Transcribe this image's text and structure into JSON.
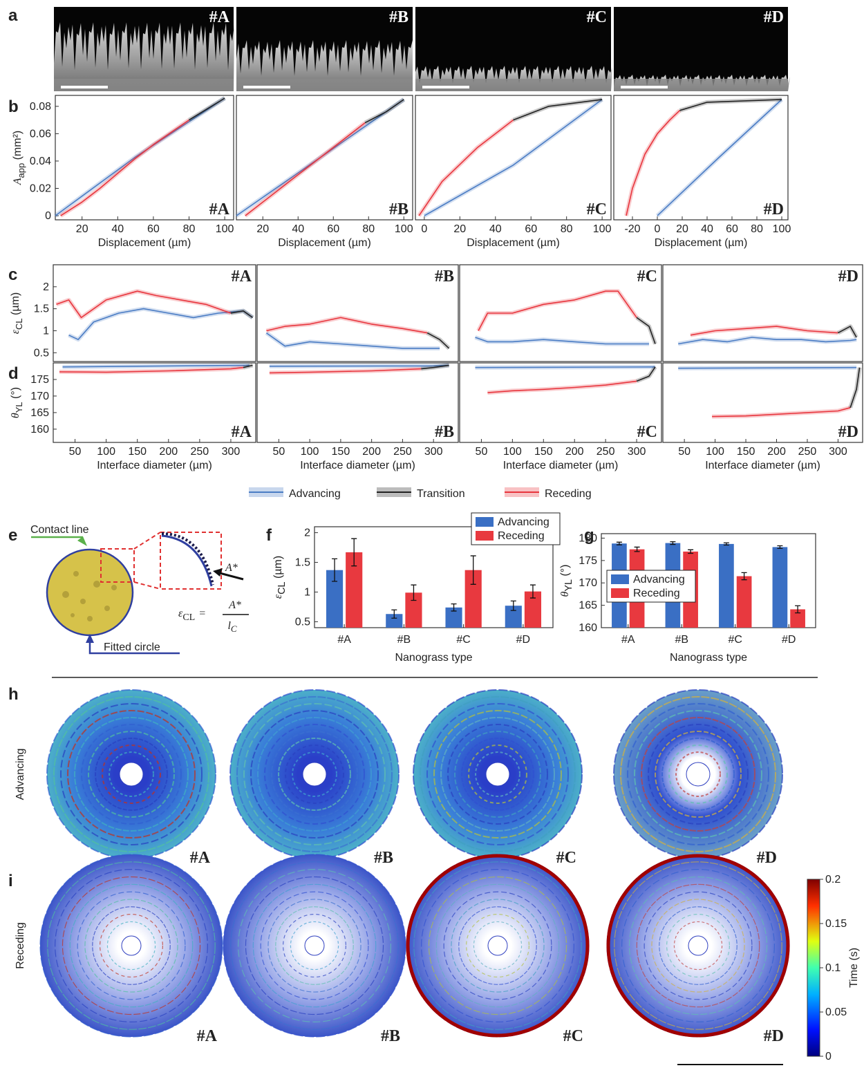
{
  "panel_labels": [
    "a",
    "b",
    "c",
    "d",
    "e",
    "f",
    "g",
    "h",
    "i"
  ],
  "sem_images": [
    {
      "tag": "#A"
    },
    {
      "tag": "#B"
    },
    {
      "tag": "#C"
    },
    {
      "tag": "#D"
    }
  ],
  "line_legend": [
    {
      "name": "Advancing",
      "color": "#4a7cc4"
    },
    {
      "name": "Transition",
      "color": "#222222"
    },
    {
      "name": "Receding",
      "color": "#e8353d"
    }
  ],
  "chart_data": [
    {
      "type": "line",
      "tag": "#A",
      "xlabel": "Displacement (µm)",
      "ylabel": {
        "symbol": "A",
        "subscript": "app",
        "unit": " (mm²)"
      },
      "xlim": [
        5,
        105
      ],
      "xticks": [
        20,
        40,
        60,
        80,
        100
      ],
      "ylim": [
        -0.003,
        0.088
      ],
      "yticks": [
        0,
        0.02,
        0.04,
        0.06,
        0.08
      ],
      "series": [
        {
          "color": "#4a7cc4",
          "x": [
            5,
            50,
            100
          ],
          "values": [
            0,
            0.043,
            0.086
          ]
        },
        {
          "color": "#e8353d",
          "x": [
            8,
            20,
            30,
            50,
            60,
            80
          ],
          "values": [
            0,
            0.01,
            0.02,
            0.042,
            0.052,
            0.07
          ]
        },
        {
          "color": "#222222",
          "x": [
            80,
            100
          ],
          "values": [
            0.07,
            0.086
          ]
        }
      ]
    },
    {
      "type": "line",
      "tag": "#B",
      "xlabel": "Displacement (µm)",
      "xlim": [
        5,
        105
      ],
      "xticks": [
        20,
        40,
        60,
        80,
        100
      ],
      "ylim": [
        -0.003,
        0.088
      ],
      "series": [
        {
          "color": "#4a7cc4",
          "x": [
            5,
            100
          ],
          "values": [
            0,
            0.085
          ]
        },
        {
          "color": "#e8353d",
          "x": [
            10,
            20,
            40,
            60,
            78
          ],
          "values": [
            0,
            0.01,
            0.03,
            0.05,
            0.068
          ]
        },
        {
          "color": "#222222",
          "x": [
            78,
            90,
            100
          ],
          "values": [
            0.068,
            0.076,
            0.085
          ]
        }
      ]
    },
    {
      "type": "line",
      "tag": "#C",
      "xlabel": "Displacement (µm)",
      "xlim": [
        -5,
        105
      ],
      "xticks": [
        0,
        20,
        40,
        60,
        80,
        100
      ],
      "ylim": [
        -0.003,
        0.088
      ],
      "series": [
        {
          "color": "#4a7cc4",
          "x": [
            0,
            50,
            100
          ],
          "values": [
            0,
            0.037,
            0.085
          ]
        },
        {
          "color": "#e8353d",
          "x": [
            -3,
            10,
            30,
            50
          ],
          "values": [
            0,
            0.025,
            0.05,
            0.07
          ]
        },
        {
          "color": "#222222",
          "x": [
            50,
            70,
            100
          ],
          "values": [
            0.07,
            0.08,
            0.085
          ]
        }
      ]
    },
    {
      "type": "line",
      "tag": "#D",
      "xlabel": "Displacement (µm)",
      "xlim": [
        -35,
        105
      ],
      "xticks": [
        -20,
        0,
        20,
        40,
        60,
        80,
        100
      ],
      "ylim": [
        -0.003,
        0.088
      ],
      "series": [
        {
          "color": "#4a7cc4",
          "x": [
            0,
            50,
            100
          ],
          "values": [
            0,
            0.043,
            0.085
          ]
        },
        {
          "color": "#e8353d",
          "x": [
            -25,
            -20,
            -10,
            0,
            10,
            18
          ],
          "values": [
            0,
            0.02,
            0.045,
            0.06,
            0.07,
            0.077
          ]
        },
        {
          "color": "#222222",
          "x": [
            18,
            40,
            100
          ],
          "values": [
            0.077,
            0.083,
            0.085
          ]
        }
      ]
    },
    {
      "type": "line",
      "tag": "#A",
      "ylabel": {
        "symbol": "ε",
        "subscript": "CL",
        "unit": " (µm)"
      },
      "xlim": [
        15,
        340
      ],
      "ylim": [
        0.3,
        2.5
      ],
      "yticks": [
        0.5,
        1,
        1.5,
        2
      ],
      "series": [
        {
          "color": "#4a7cc4",
          "x": [
            40,
            55,
            80,
            120,
            160,
            200,
            240,
            280,
            320,
            335
          ],
          "values": [
            0.9,
            0.8,
            1.2,
            1.4,
            1.5,
            1.4,
            1.3,
            1.4,
            1.45,
            1.3
          ]
        },
        {
          "color": "#e8353d",
          "x": [
            20,
            40,
            60,
            100,
            150,
            180,
            220,
            260,
            300
          ],
          "values": [
            1.6,
            1.7,
            1.3,
            1.7,
            1.9,
            1.8,
            1.7,
            1.6,
            1.4
          ]
        },
        {
          "color": "#222222",
          "x": [
            300,
            320,
            335
          ],
          "values": [
            1.4,
            1.45,
            1.3
          ]
        }
      ]
    },
    {
      "type": "line",
      "tag": "#B",
      "xlim": [
        15,
        340
      ],
      "ylim": [
        0.3,
        2.5
      ],
      "series": [
        {
          "color": "#4a7cc4",
          "x": [
            30,
            60,
            100,
            150,
            200,
            250,
            290,
            310
          ],
          "values": [
            0.95,
            0.65,
            0.75,
            0.7,
            0.65,
            0.6,
            0.6,
            0.6
          ]
        },
        {
          "color": "#e8353d",
          "x": [
            30,
            60,
            100,
            150,
            200,
            250,
            290
          ],
          "values": [
            1,
            1.1,
            1.15,
            1.3,
            1.15,
            1.05,
            0.95
          ]
        },
        {
          "color": "#222222",
          "x": [
            290,
            310,
            325
          ],
          "values": [
            0.95,
            0.8,
            0.6
          ]
        }
      ]
    },
    {
      "type": "line",
      "tag": "#C",
      "xlim": [
        15,
        340
      ],
      "ylim": [
        0.3,
        2.5
      ],
      "series": [
        {
          "color": "#4a7cc4",
          "x": [
            40,
            60,
            100,
            150,
            200,
            250,
            300,
            320
          ],
          "values": [
            0.85,
            0.75,
            0.75,
            0.8,
            0.75,
            0.7,
            0.7,
            0.7
          ]
        },
        {
          "color": "#e8353d",
          "x": [
            45,
            60,
            100,
            150,
            200,
            250,
            270,
            300
          ],
          "values": [
            1,
            1.4,
            1.4,
            1.6,
            1.7,
            1.9,
            1.9,
            1.3
          ]
        },
        {
          "color": "#222222",
          "x": [
            300,
            320,
            330
          ],
          "values": [
            1.3,
            1.1,
            0.7
          ]
        }
      ]
    },
    {
      "type": "line",
      "tag": "#D",
      "xlim": [
        15,
        340
      ],
      "ylim": [
        0.3,
        2.5
      ],
      "series": [
        {
          "color": "#4a7cc4",
          "x": [
            40,
            80,
            120,
            160,
            200,
            240,
            280,
            320,
            330
          ],
          "values": [
            0.7,
            0.8,
            0.75,
            0.85,
            0.8,
            0.8,
            0.75,
            0.78,
            0.8
          ]
        },
        {
          "color": "#e8353d",
          "x": [
            60,
            100,
            150,
            200,
            250,
            300
          ],
          "values": [
            0.9,
            1,
            1.05,
            1.1,
            1,
            0.95
          ]
        },
        {
          "color": "#222222",
          "x": [
            300,
            320,
            330
          ],
          "values": [
            0.95,
            1.1,
            0.85
          ]
        }
      ]
    },
    {
      "type": "line",
      "tag": "#A",
      "xlabel": "Interface diameter (µm)",
      "ylabel": {
        "symbol": "θ",
        "subscript": "YL",
        "unit": " (°)"
      },
      "xlim": [
        15,
        340
      ],
      "xticks": [
        50,
        100,
        150,
        200,
        250,
        300
      ],
      "ylim": [
        156,
        180
      ],
      "yticks": [
        160,
        165,
        170,
        175
      ],
      "series": [
        {
          "color": "#4a7cc4",
          "x": [
            30,
            330
          ],
          "values": [
            178.8,
            179.3
          ]
        },
        {
          "color": "#e8353d",
          "x": [
            25,
            100,
            200,
            300,
            320
          ],
          "values": [
            177.3,
            177.2,
            177.6,
            178.2,
            178.6
          ]
        },
        {
          "color": "#222222",
          "x": [
            320,
            335
          ],
          "values": [
            178.6,
            179.3
          ]
        }
      ]
    },
    {
      "type": "line",
      "tag": "#B",
      "xlabel": "Interface diameter (µm)",
      "xlim": [
        15,
        340
      ],
      "xticks": [
        50,
        100,
        150,
        200,
        250,
        300
      ],
      "ylim": [
        156,
        180
      ],
      "series": [
        {
          "color": "#4a7cc4",
          "x": [
            35,
            300,
            325
          ],
          "values": [
            179,
            179.1,
            179.3
          ]
        },
        {
          "color": "#e8353d",
          "x": [
            35,
            100,
            200,
            280
          ],
          "values": [
            177,
            177.2,
            177.6,
            178.2
          ]
        },
        {
          "color": "#222222",
          "x": [
            280,
            300,
            325
          ],
          "values": [
            178.2,
            178.6,
            179.3
          ]
        }
      ]
    },
    {
      "type": "line",
      "tag": "#C",
      "xlabel": "Interface diameter (µm)",
      "xlim": [
        15,
        340
      ],
      "xticks": [
        50,
        100,
        150,
        200,
        250,
        300
      ],
      "ylim": [
        156,
        180
      ],
      "series": [
        {
          "color": "#4a7cc4",
          "x": [
            40,
            330
          ],
          "values": [
            178.6,
            178.8
          ]
        },
        {
          "color": "#e8353d",
          "x": [
            60,
            100,
            150,
            200,
            250,
            300
          ],
          "values": [
            171,
            171.6,
            172,
            172.6,
            173.3,
            174.5
          ]
        },
        {
          "color": "#222222",
          "x": [
            300,
            320,
            330
          ],
          "values": [
            174.5,
            176,
            178.8
          ]
        }
      ]
    },
    {
      "type": "line",
      "tag": "#D",
      "xlabel": "Interface diameter (µm)",
      "xlim": [
        15,
        340
      ],
      "xticks": [
        50,
        100,
        150,
        200,
        250,
        300
      ],
      "ylim": [
        156,
        180
      ],
      "series": [
        {
          "color": "#4a7cc4",
          "x": [
            40,
            330
          ],
          "values": [
            178.4,
            178.6
          ]
        },
        {
          "color": "#e8353d",
          "x": [
            95,
            150,
            200,
            250,
            300,
            320
          ],
          "values": [
            163.8,
            164,
            164.5,
            165,
            165.5,
            166.5
          ]
        },
        {
          "color": "#222222",
          "x": [
            320,
            330,
            335
          ],
          "values": [
            166.5,
            172,
            178.6
          ]
        }
      ]
    },
    {
      "type": "bar",
      "xlabel": "Nanograss type",
      "ylabel": {
        "symbol": "ε",
        "subscript": "CL",
        "unit": " (µm)"
      },
      "categories": [
        "#A",
        "#B",
        "#C",
        "#D"
      ],
      "ylim": [
        0.4,
        2.1
      ],
      "yticks": [
        0.5,
        1,
        1.5,
        2
      ],
      "legend": "upper right",
      "series": [
        {
          "name": "Advancing",
          "color": "#3a6fc4",
          "values": [
            1.37,
            0.63,
            0.74,
            0.77
          ],
          "errors": [
            0.19,
            0.07,
            0.06,
            0.08
          ]
        },
        {
          "name": "Receding",
          "color": "#e8393f",
          "values": [
            1.67,
            0.99,
            1.37,
            1.01
          ],
          "errors": [
            0.23,
            0.13,
            0.24,
            0.11
          ]
        }
      ]
    },
    {
      "type": "bar",
      "xlabel": "Nanograss type",
      "ylabel": {
        "symbol": "θ",
        "subscript": "YL",
        "unit": " (°)"
      },
      "categories": [
        "#A",
        "#B",
        "#C",
        "#D"
      ],
      "ylim": [
        160,
        181
      ],
      "yticks": [
        160,
        165,
        170,
        175,
        180
      ],
      "legend": "center left",
      "series": [
        {
          "name": "Advancing",
          "color": "#3a6fc4",
          "values": [
            178.8,
            178.9,
            178.7,
            178
          ],
          "errors": [
            0.3,
            0.3,
            0.25,
            0.3
          ]
        },
        {
          "name": "Receding",
          "color": "#e8393f",
          "values": [
            177.5,
            177,
            171.5,
            164.1
          ],
          "errors": [
            0.5,
            0.4,
            0.8,
            0.8
          ]
        }
      ]
    }
  ],
  "diagram": {
    "contact_line": "Contact line",
    "fitted_circle": "Fitted circle",
    "area": "A*",
    "formula": {
      "lhs_symbol": "ε",
      "lhs_subscript": "CL",
      "equals": "=",
      "numerator": "A*",
      "denominator_symbol": "l",
      "denominator_subscript": "C"
    }
  },
  "contour_maps": {
    "rows": [
      "Advancing",
      "Receding"
    ],
    "tags": [
      "#A",
      "#B",
      "#C",
      "#D"
    ]
  },
  "colorbar": {
    "label": "Time (s)",
    "ylim": [
      0,
      0.2
    ],
    "yticks": [
      0,
      0.05,
      0.1,
      0.15,
      0.2
    ]
  }
}
